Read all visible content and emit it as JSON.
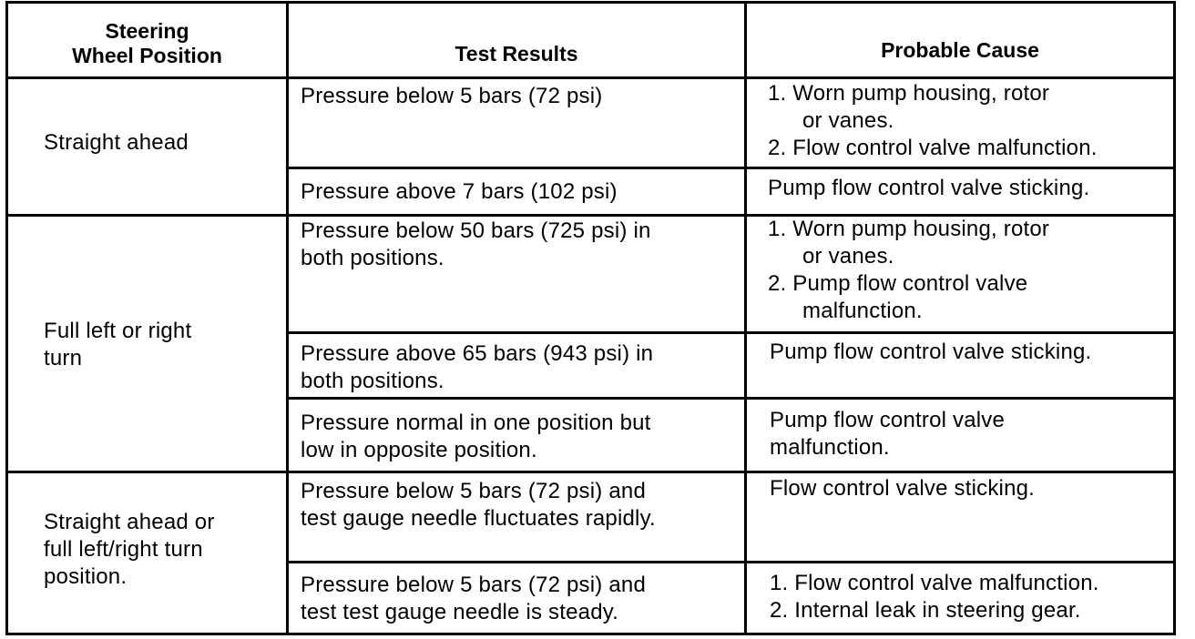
{
  "table": {
    "headers": {
      "position_line1": "Steering",
      "position_line2": "Wheel Position",
      "results": "Test Results",
      "cause": "Probable Cause"
    },
    "groups": [
      {
        "position_lines": [
          "Straight ahead"
        ],
        "rows": [
          {
            "result_lines": [
              "Pressure below 5 bars (72 psi)"
            ],
            "cause_lines": [
              "1.  Worn pump housing, rotor",
              "or vanes.",
              "2.  Flow control valve malfunction."
            ]
          },
          {
            "result_lines": [
              "Pressure above 7 bars (102 psi)"
            ],
            "cause_lines": [
              "Pump flow control valve sticking."
            ]
          }
        ]
      },
      {
        "position_lines": [
          "Full left or right",
          "turn"
        ],
        "rows": [
          {
            "result_lines": [
              "Pressure below 50 bars (725 psi) in",
              "both positions."
            ],
            "cause_lines": [
              "1.  Worn pump housing, rotor",
              "or vanes.",
              "2.  Pump flow control valve",
              "malfunction."
            ]
          },
          {
            "result_lines": [
              "Pressure above 65 bars (943 psi) in",
              "both positions."
            ],
            "cause_lines": [
              "Pump flow control valve sticking."
            ]
          },
          {
            "result_lines": [
              "Pressure normal in one position but",
              "low in opposite position."
            ],
            "cause_lines": [
              "Pump flow control valve",
              "malfunction."
            ]
          }
        ]
      },
      {
        "position_lines": [
          "Straight ahead or",
          "full left/right turn",
          "position."
        ],
        "rows": [
          {
            "result_lines": [
              "Pressure below 5 bars (72 psi) and",
              "test gauge needle fluctuates rapidly."
            ],
            "cause_lines": [
              "Flow control valve sticking."
            ]
          },
          {
            "result_lines": [
              "Pressure below 5 bars (72 psi) and",
              "test test gauge needle is steady."
            ],
            "cause_lines": [
              "1.  Flow control valve malfunction.",
              "2.  Internal leak in steering gear."
            ]
          }
        ]
      }
    ]
  }
}
